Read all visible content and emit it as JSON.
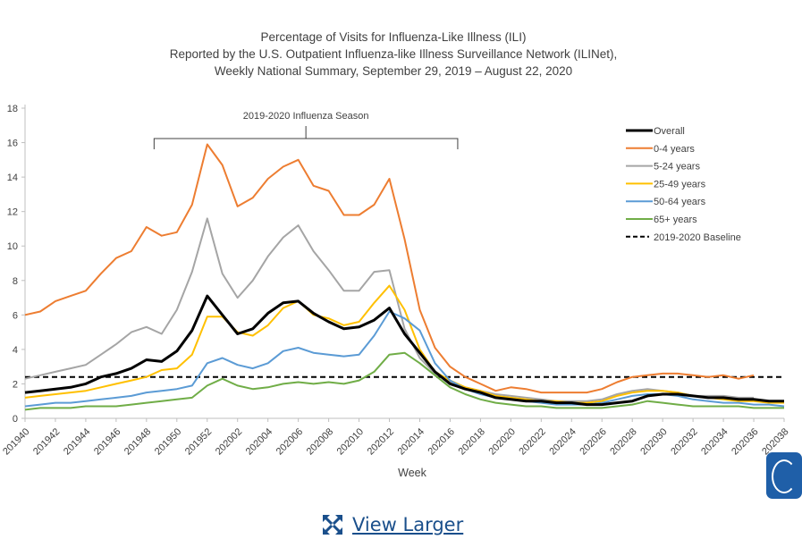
{
  "chart_data": {
    "type": "line",
    "title": [
      "Percentage of Visits for Influenza-Like Illness (ILI)",
      "Reported by the U.S. Outpatient Influenza-like Illness Surveillance Network (ILINet),",
      "Weekly National Summary, September 29, 2019 – August 22, 2020"
    ],
    "xlabel": "Week",
    "ylabel": "",
    "ylim": [
      0,
      18
    ],
    "yticks": [
      "0",
      "2",
      "4",
      "6",
      "8",
      "10",
      "12",
      "14",
      "16",
      "18"
    ],
    "xtick_labels": [
      "201940",
      "201942",
      "201944",
      "201946",
      "201948",
      "201950",
      "201952",
      "202002",
      "202004",
      "202006",
      "202008",
      "202010",
      "202012",
      "202014",
      "202016",
      "202018",
      "202020",
      "202022",
      "202024",
      "202026",
      "202028",
      "202030",
      "202032",
      "202034",
      "202036",
      "202038"
    ],
    "x_count": 51,
    "baseline": {
      "name": "2019-2020 Baseline",
      "value": 2.4,
      "color": "#000000"
    },
    "annotation": {
      "label": "2019-2020 Influenza Season",
      "x_start": 8.5,
      "x_end": 28.5
    },
    "legend_position": "top-right",
    "series": [
      {
        "name": "Overall",
        "color": "#000000",
        "width": 3,
        "values": [
          1.5,
          1.6,
          1.7,
          1.8,
          2.0,
          2.4,
          2.6,
          2.9,
          3.4,
          3.3,
          3.9,
          5.1,
          7.1,
          6.0,
          4.9,
          5.2,
          6.1,
          6.7,
          6.8,
          6.1,
          5.6,
          5.2,
          5.3,
          5.7,
          6.4,
          4.9,
          3.8,
          2.7,
          2.0,
          1.7,
          1.5,
          1.2,
          1.1,
          1.0,
          1.0,
          0.9,
          0.9,
          0.8,
          0.8,
          0.9,
          1.0,
          1.3,
          1.4,
          1.4,
          1.3,
          1.2,
          1.2,
          1.1,
          1.1,
          1.0,
          1.0
        ]
      },
      {
        "name": "0-4 years",
        "color": "#ed7d31",
        "width": 2,
        "values": [
          6.0,
          6.2,
          6.8,
          7.1,
          7.4,
          8.4,
          9.3,
          9.7,
          11.1,
          10.6,
          10.8,
          12.4,
          15.9,
          14.7,
          12.3,
          12.8,
          13.9,
          14.6,
          15.0,
          13.5,
          13.2,
          11.8,
          11.8,
          12.4,
          13.9,
          10.4,
          6.3,
          4.1,
          3.0,
          2.4,
          2.0,
          1.6,
          1.8,
          1.7,
          1.5,
          1.5,
          1.5,
          1.5,
          1.7,
          2.1,
          2.4,
          2.5,
          2.6,
          2.6,
          2.5,
          2.4,
          2.5,
          2.3,
          2.5,
          null,
          null
        ]
      },
      {
        "name": "5-24 years",
        "color": "#a5a5a5",
        "width": 2,
        "values": [
          2.3,
          2.5,
          2.7,
          2.9,
          3.1,
          3.7,
          4.3,
          5.0,
          5.3,
          4.9,
          6.3,
          8.5,
          11.6,
          8.4,
          7.0,
          8.0,
          9.4,
          10.5,
          11.2,
          9.7,
          8.6,
          7.4,
          7.4,
          8.5,
          8.6,
          5.2,
          3.5,
          2.6,
          2.1,
          1.8,
          1.6,
          1.4,
          1.3,
          1.2,
          1.1,
          1.0,
          1.0,
          1.0,
          1.1,
          1.4,
          1.6,
          1.7,
          1.6,
          1.5,
          1.3,
          1.3,
          1.3,
          1.2,
          1.2,
          null,
          null
        ]
      },
      {
        "name": "25-49 years",
        "color": "#ffc000",
        "width": 2,
        "values": [
          1.2,
          1.3,
          1.4,
          1.5,
          1.6,
          1.8,
          2.0,
          2.2,
          2.4,
          2.8,
          2.9,
          3.7,
          5.9,
          5.9,
          5.0,
          4.8,
          5.4,
          6.4,
          6.8,
          6.0,
          5.8,
          5.4,
          5.6,
          6.7,
          7.7,
          6.3,
          4.0,
          2.7,
          2.2,
          1.8,
          1.6,
          1.3,
          1.2,
          1.1,
          1.0,
          1.0,
          0.9,
          0.9,
          1.0,
          1.3,
          1.5,
          1.6,
          1.6,
          1.5,
          1.3,
          1.2,
          1.1,
          1.0,
          1.0,
          0.9,
          0.9
        ]
      },
      {
        "name": "50-64 years",
        "color": "#5b9bd5",
        "width": 2,
        "values": [
          0.7,
          0.8,
          0.9,
          0.9,
          1.0,
          1.1,
          1.2,
          1.3,
          1.5,
          1.6,
          1.7,
          1.9,
          3.2,
          3.5,
          3.1,
          2.9,
          3.2,
          3.9,
          4.1,
          3.8,
          3.7,
          3.6,
          3.7,
          4.8,
          6.2,
          5.8,
          5.1,
          3.2,
          2.2,
          1.7,
          1.4,
          1.2,
          1.1,
          1.0,
          0.9,
          0.8,
          0.8,
          0.8,
          0.9,
          1.1,
          1.3,
          1.4,
          1.4,
          1.3,
          1.1,
          1.0,
          0.9,
          0.9,
          0.8,
          0.8,
          0.7
        ]
      },
      {
        "name": "65+ years",
        "color": "#70ad47",
        "width": 2,
        "values": [
          0.5,
          0.6,
          0.6,
          0.6,
          0.7,
          0.7,
          0.7,
          0.8,
          0.9,
          1.0,
          1.1,
          1.2,
          1.9,
          2.3,
          1.9,
          1.7,
          1.8,
          2.0,
          2.1,
          2.0,
          2.1,
          2.0,
          2.2,
          2.7,
          3.7,
          3.8,
          3.2,
          2.5,
          1.8,
          1.4,
          1.1,
          0.9,
          0.8,
          0.7,
          0.7,
          0.6,
          0.6,
          0.6,
          0.6,
          0.7,
          0.8,
          1.0,
          0.9,
          0.8,
          0.7,
          0.7,
          0.7,
          0.7,
          0.6,
          0.6,
          0.6
        ]
      }
    ]
  },
  "link": {
    "label": "View Larger"
  },
  "icons": {
    "expand": "expand-arrows-icon",
    "corner_badge": "cdc-badge-icon"
  }
}
